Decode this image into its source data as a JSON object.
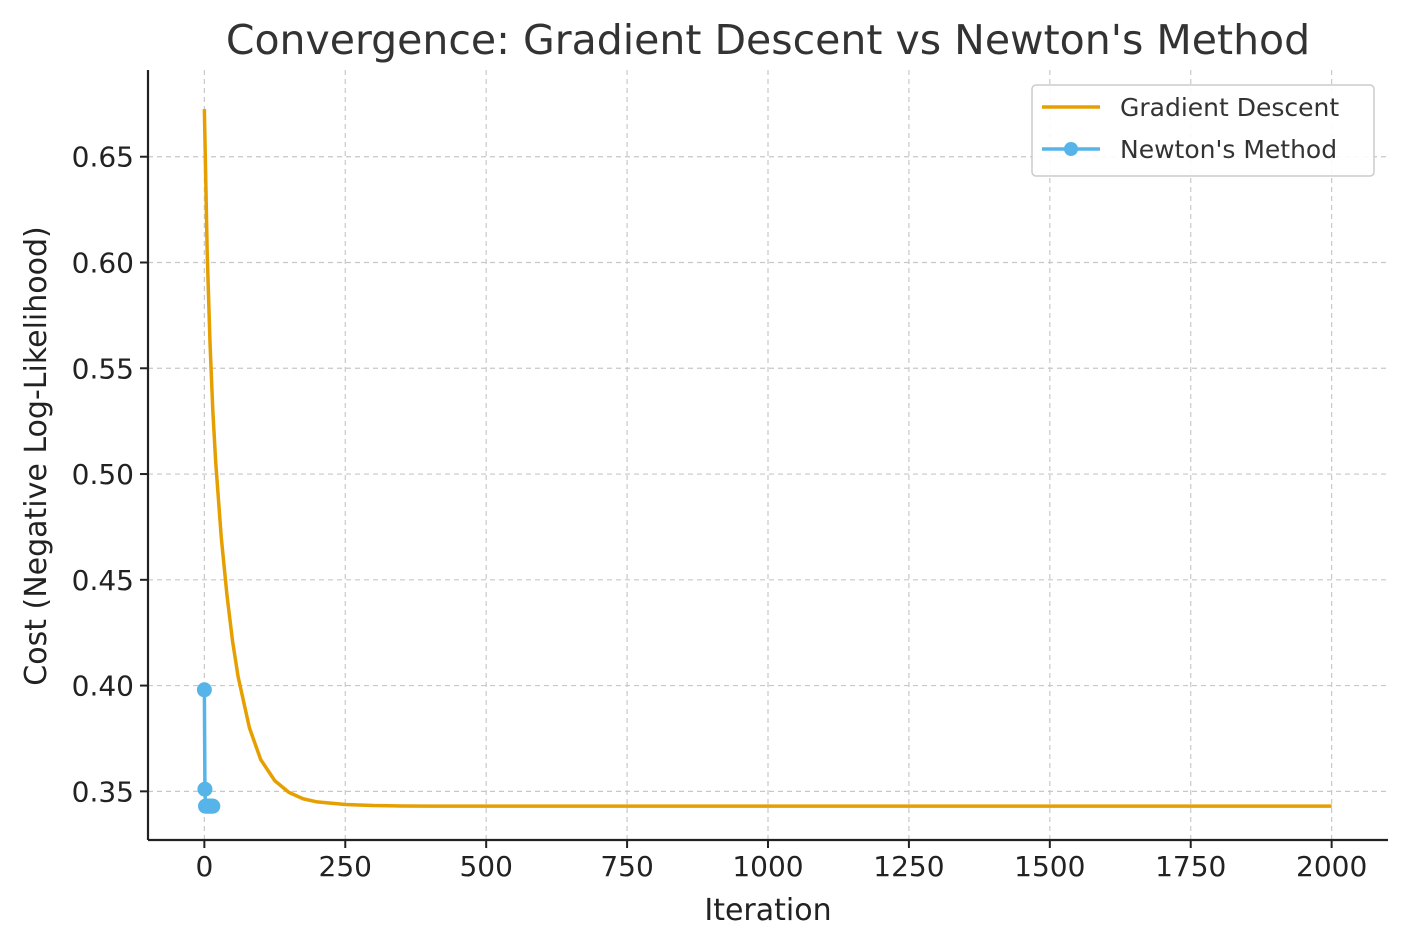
{
  "chart_data": {
    "type": "line",
    "title": "Convergence: Gradient Descent vs Newton's Method",
    "xlabel": "Iteration",
    "ylabel": "Cost (Negative Log-Likelihood)",
    "xlim": [
      -100,
      2100
    ],
    "ylim": [
      0.327,
      0.691
    ],
    "xticks": [
      0,
      250,
      500,
      750,
      1000,
      1250,
      1500,
      1750,
      2000
    ],
    "xtick_labels": [
      "0",
      "250",
      "500",
      "750",
      "1000",
      "1250",
      "1500",
      "1750",
      "2000"
    ],
    "yticks": [
      0.35,
      0.4,
      0.45,
      0.5,
      0.55,
      0.6,
      0.65
    ],
    "ytick_labels": [
      "0.35",
      "0.40",
      "0.45",
      "0.50",
      "0.55",
      "0.60",
      "0.65"
    ],
    "grid": true,
    "legend_position": "top-right",
    "series": [
      {
        "name": "Gradient Descent",
        "color": "#E69F00",
        "marker": "none",
        "x": [
          0,
          5,
          10,
          15,
          20,
          30,
          40,
          50,
          60,
          80,
          100,
          125,
          150,
          175,
          200,
          250,
          300,
          350,
          400,
          500,
          600,
          800,
          1000,
          1500,
          2000
        ],
        "y": [
          0.6725,
          0.605,
          0.562,
          0.53,
          0.506,
          0.47,
          0.443,
          0.421,
          0.404,
          0.38,
          0.365,
          0.355,
          0.3495,
          0.3465,
          0.345,
          0.3438,
          0.3433,
          0.3431,
          0.343,
          0.343,
          0.343,
          0.343,
          0.343,
          0.343,
          0.343
        ]
      },
      {
        "name": "Newton's Method",
        "color": "#56B4E9",
        "marker": "circle",
        "x": [
          0,
          1,
          2,
          3,
          4,
          5,
          6,
          7,
          8,
          9,
          10,
          11,
          12,
          13,
          14,
          15
        ],
        "y": [
          0.398,
          0.351,
          0.343,
          0.343,
          0.343,
          0.343,
          0.343,
          0.343,
          0.343,
          0.343,
          0.343,
          0.343,
          0.343,
          0.343,
          0.343,
          0.343
        ]
      }
    ]
  }
}
